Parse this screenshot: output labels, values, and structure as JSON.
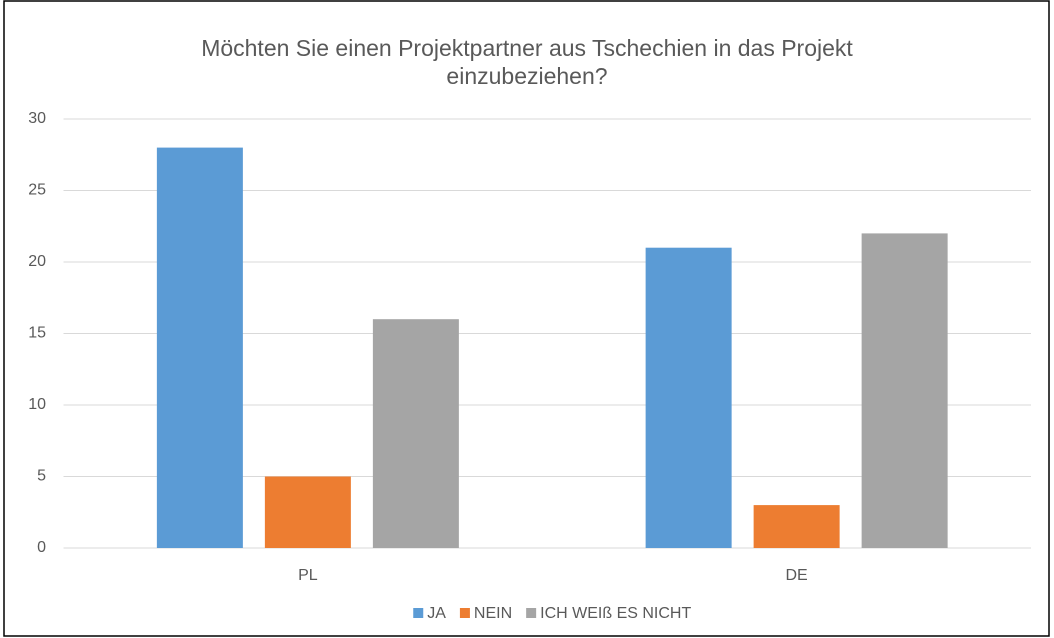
{
  "chart_data": {
    "type": "bar",
    "title": "Möchten Sie einen Projektpartner aus Tschechien in das Projekt einzubeziehen?",
    "categories": [
      "PL",
      "DE"
    ],
    "series": [
      {
        "name": "JA",
        "color": "#5b9bd5",
        "values": [
          28,
          21
        ]
      },
      {
        "name": "NEIN",
        "color": "#ed7d31",
        "values": [
          5,
          3
        ]
      },
      {
        "name": "ICH WEIß ES NICHT",
        "color": "#a5a5a5",
        "values": [
          16,
          22
        ]
      }
    ],
    "ylim": [
      0,
      30
    ],
    "yticks": [
      0,
      5,
      10,
      15,
      20,
      25,
      30
    ],
    "grid": true,
    "legend": "bottom"
  }
}
